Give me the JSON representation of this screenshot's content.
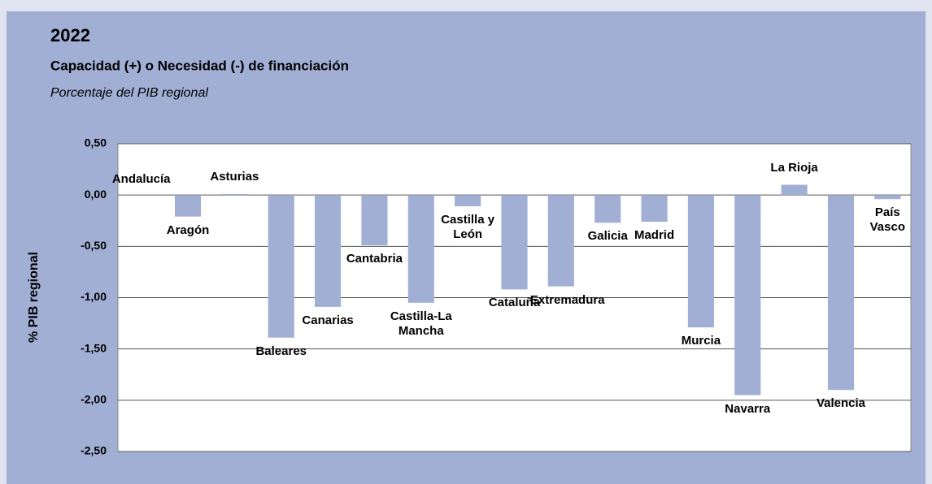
{
  "chart_data": {
    "type": "bar",
    "title": "2022",
    "subtitle": "Capacidad (+) o Necesidad (-) de financiación",
    "note": "Porcentaje del PIB regional",
    "ylabel": "% PIB regional",
    "categories": [
      "Andalucía",
      "Aragón",
      "Asturias",
      "Baleares",
      "Canarias",
      "Cantabria",
      "Castilla-La Mancha",
      "Castilla y León",
      "Cataluña",
      "Extremadura",
      "Galicia",
      "Madrid",
      "Murcia",
      "Navarra",
      "La Rioja",
      "Valencia",
      "País Vasco"
    ],
    "values": [
      0.0,
      -0.21,
      0.01,
      -1.39,
      -1.09,
      -0.49,
      -1.05,
      -0.11,
      -0.92,
      -0.89,
      -0.27,
      -0.26,
      -1.29,
      -1.95,
      0.1,
      -1.9,
      -0.04
    ],
    "color": "#a2afd5",
    "ylim": [
      -2.5,
      0.5
    ],
    "yticks": [
      {
        "value": 0.5,
        "label": "0,50"
      },
      {
        "value": 0,
        "label": "0,00"
      },
      {
        "value": -0.5,
        "label": "-0,50"
      },
      {
        "value": -1,
        "label": "-1,00"
      },
      {
        "value": -1.5,
        "label": "-1,50"
      },
      {
        "value": -2,
        "label": "-2,00"
      },
      {
        "value": -2.5,
        "label": "-2,50"
      }
    ],
    "grid": true
  }
}
